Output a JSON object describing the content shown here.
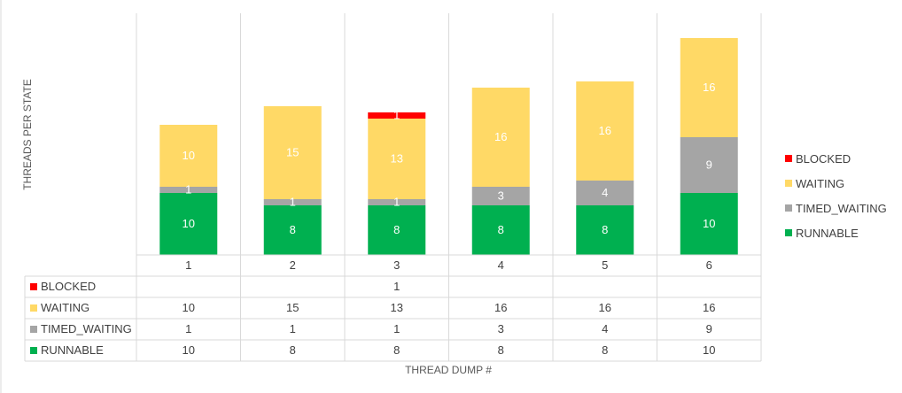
{
  "chart_data": {
    "type": "bar",
    "stacked": true,
    "title": "",
    "xlabel": "THREAD DUMP #",
    "ylabel": "THREADS PER STATE",
    "categories": [
      "1",
      "2",
      "3",
      "4",
      "5",
      "6"
    ],
    "ylim": [
      0,
      39
    ],
    "grid": false,
    "legend_position": "right",
    "data_table": true,
    "series": [
      {
        "name": "RUNNABLE",
        "color": "#00b050",
        "values": [
          10,
          8,
          8,
          8,
          8,
          10
        ]
      },
      {
        "name": "TIMED_WAITING",
        "color": "#a5a5a5",
        "values": [
          1,
          1,
          1,
          3,
          4,
          9
        ]
      },
      {
        "name": "WAITING",
        "color": "#ffd966",
        "values": [
          10,
          15,
          13,
          16,
          16,
          16
        ]
      },
      {
        "name": "BLOCKED",
        "color": "#ff0000",
        "values": [
          null,
          null,
          1,
          null,
          null,
          null
        ]
      }
    ]
  }
}
